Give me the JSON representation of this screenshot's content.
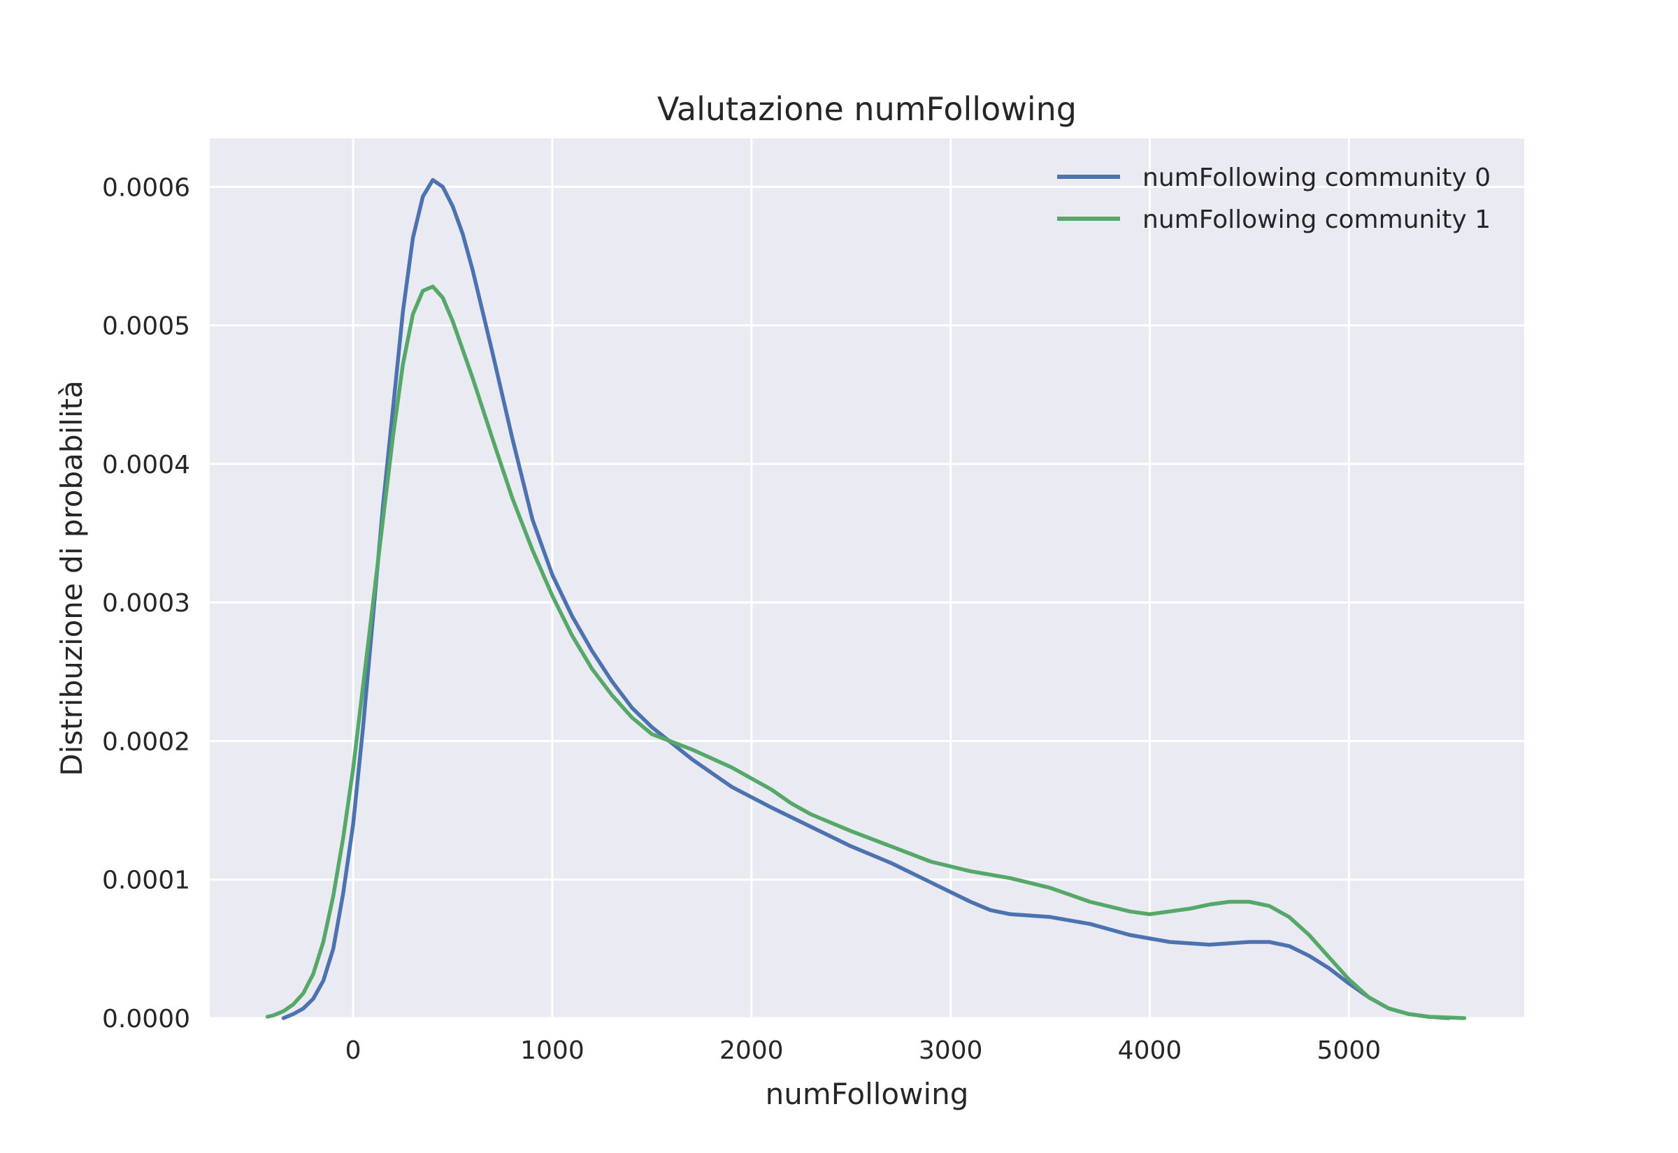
{
  "chart_data": {
    "type": "line",
    "title": "Valutazione numFollowing",
    "xlabel": "numFollowing",
    "ylabel": "Distribuzione di probabilità",
    "xlim": [
      -720,
      5880
    ],
    "ylim": [
      0,
      0.000635
    ],
    "x_ticks": [
      0,
      1000,
      2000,
      3000,
      4000,
      5000
    ],
    "x_tick_labels": [
      "0",
      "1000",
      "2000",
      "3000",
      "4000",
      "5000"
    ],
    "y_ticks": [
      0,
      0.0001,
      0.0002,
      0.0003,
      0.0004,
      0.0005,
      0.0006
    ],
    "y_tick_labels": [
      "0.0000",
      "0.0001",
      "0.0002",
      "0.0003",
      "0.0004",
      "0.0005",
      "0.0006"
    ],
    "grid": true,
    "background": "#EAEAF2",
    "legend_position": "top-right",
    "series": [
      {
        "name": "numFollowing community 0",
        "color": "#4C72B0",
        "points": [
          [
            -350,
            0
          ],
          [
            -300,
            3e-06
          ],
          [
            -250,
            7e-06
          ],
          [
            -200,
            1.4e-05
          ],
          [
            -150,
            2.7e-05
          ],
          [
            -100,
            5e-05
          ],
          [
            -50,
            9e-05
          ],
          [
            0,
            0.00014
          ],
          [
            50,
            0.00021
          ],
          [
            100,
            0.00029
          ],
          [
            150,
            0.00037
          ],
          [
            200,
            0.00044
          ],
          [
            250,
            0.00051
          ],
          [
            300,
            0.000563
          ],
          [
            350,
            0.000593
          ],
          [
            400,
            0.000605
          ],
          [
            450,
            0.0006
          ],
          [
            500,
            0.000586
          ],
          [
            550,
            0.000566
          ],
          [
            600,
            0.00054
          ],
          [
            700,
            0.00048
          ],
          [
            800,
            0.000418
          ],
          [
            900,
            0.00036
          ],
          [
            1000,
            0.00032
          ],
          [
            1100,
            0.00029
          ],
          [
            1200,
            0.000265
          ],
          [
            1300,
            0.000243
          ],
          [
            1400,
            0.000224
          ],
          [
            1500,
            0.00021
          ],
          [
            1700,
            0.000187
          ],
          [
            1900,
            0.000167
          ],
          [
            2100,
            0.000152
          ],
          [
            2300,
            0.000138
          ],
          [
            2500,
            0.000124
          ],
          [
            2700,
            0.000112
          ],
          [
            2900,
            9.8e-05
          ],
          [
            3100,
            8.4e-05
          ],
          [
            3200,
            7.8e-05
          ],
          [
            3300,
            7.5e-05
          ],
          [
            3500,
            7.3e-05
          ],
          [
            3700,
            6.8e-05
          ],
          [
            3900,
            6e-05
          ],
          [
            4100,
            5.5e-05
          ],
          [
            4300,
            5.3e-05
          ],
          [
            4500,
            5.5e-05
          ],
          [
            4600,
            5.5e-05
          ],
          [
            4700,
            5.2e-05
          ],
          [
            4800,
            4.5e-05
          ],
          [
            4900,
            3.6e-05
          ],
          [
            5000,
            2.5e-05
          ],
          [
            5100,
            1.5e-05
          ],
          [
            5200,
            7e-06
          ],
          [
            5300,
            3e-06
          ],
          [
            5400,
            1e-06
          ],
          [
            5500,
            0
          ]
        ]
      },
      {
        "name": "numFollowing community 1",
        "color": "#55A868",
        "points": [
          [
            -430,
            1e-06
          ],
          [
            -400,
            2e-06
          ],
          [
            -350,
            5e-06
          ],
          [
            -300,
            1e-05
          ],
          [
            -250,
            1.8e-05
          ],
          [
            -200,
            3.2e-05
          ],
          [
            -150,
            5.5e-05
          ],
          [
            -100,
            8.8e-05
          ],
          [
            -50,
            0.00013
          ],
          [
            0,
            0.00018
          ],
          [
            50,
            0.00024
          ],
          [
            100,
            0.0003
          ],
          [
            150,
            0.00036
          ],
          [
            200,
            0.00042
          ],
          [
            250,
            0.000472
          ],
          [
            300,
            0.000508
          ],
          [
            350,
            0.000525
          ],
          [
            400,
            0.000528
          ],
          [
            450,
            0.00052
          ],
          [
            500,
            0.000503
          ],
          [
            600,
            0.000462
          ],
          [
            700,
            0.000418
          ],
          [
            800,
            0.000375
          ],
          [
            900,
            0.000338
          ],
          [
            1000,
            0.000305
          ],
          [
            1100,
            0.000276
          ],
          [
            1200,
            0.000252
          ],
          [
            1300,
            0.000233
          ],
          [
            1400,
            0.000217
          ],
          [
            1500,
            0.000205
          ],
          [
            1700,
            0.000194
          ],
          [
            1900,
            0.000181
          ],
          [
            2100,
            0.000165
          ],
          [
            2200,
            0.000155
          ],
          [
            2300,
            0.000147
          ],
          [
            2500,
            0.000135
          ],
          [
            2700,
            0.000124
          ],
          [
            2900,
            0.000113
          ],
          [
            3100,
            0.000106
          ],
          [
            3300,
            0.000101
          ],
          [
            3500,
            9.4e-05
          ],
          [
            3700,
            8.4e-05
          ],
          [
            3900,
            7.7e-05
          ],
          [
            4000,
            7.5e-05
          ],
          [
            4200,
            7.9e-05
          ],
          [
            4300,
            8.2e-05
          ],
          [
            4400,
            8.4e-05
          ],
          [
            4500,
            8.4e-05
          ],
          [
            4600,
            8.1e-05
          ],
          [
            4700,
            7.3e-05
          ],
          [
            4800,
            6e-05
          ],
          [
            4900,
            4.4e-05
          ],
          [
            5000,
            2.8e-05
          ],
          [
            5100,
            1.5e-05
          ],
          [
            5200,
            7e-06
          ],
          [
            5300,
            3e-06
          ],
          [
            5400,
            1e-06
          ],
          [
            5580,
            0
          ]
        ]
      }
    ]
  }
}
